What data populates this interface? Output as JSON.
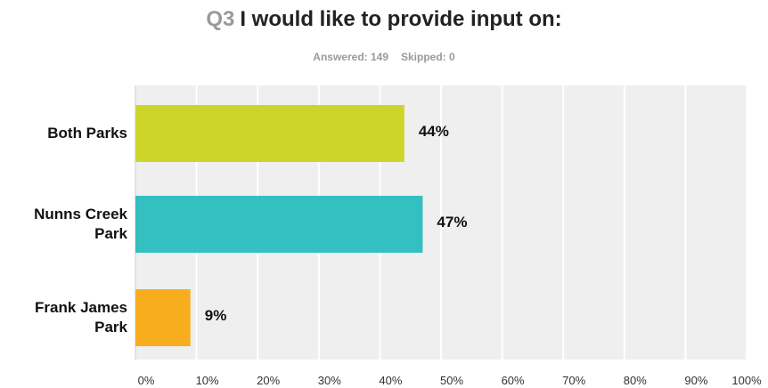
{
  "question": {
    "number": "Q3",
    "text": "I would like to provide input on:"
  },
  "stats": {
    "answered": "Answered: 149",
    "skipped": "Skipped: 0"
  },
  "chart_data": {
    "type": "bar",
    "orientation": "horizontal",
    "title": "I would like to provide input on:",
    "categories": [
      "Both Parks",
      "Nunns Creek Park",
      "Frank James Park"
    ],
    "category_lines": [
      [
        "Both Parks"
      ],
      [
        "Nunns Creek",
        "Park"
      ],
      [
        "Frank James",
        "Park"
      ]
    ],
    "values": [
      44,
      47,
      9
    ],
    "value_labels": [
      "44%",
      "47%",
      "9%"
    ],
    "colors": [
      "#cdd52a",
      "#34bfc0",
      "#f7ad1e"
    ],
    "xlim": [
      0,
      100
    ],
    "x_ticks": [
      "0%",
      "10%",
      "20%",
      "30%",
      "40%",
      "50%",
      "60%",
      "70%",
      "80%",
      "90%",
      "100%"
    ],
    "grid": true,
    "plot_background": "#efefef",
    "grid_color": "#ffffff"
  }
}
